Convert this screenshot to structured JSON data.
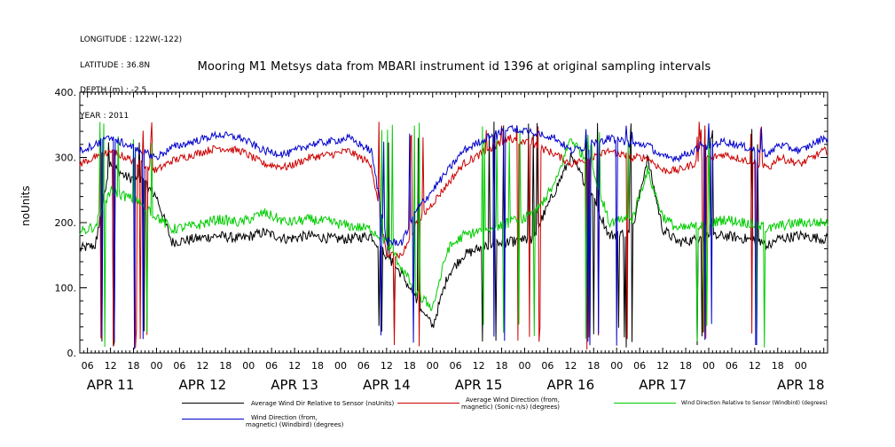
{
  "meta": {
    "longitude": "LONGITUDE : 122W(-122)",
    "latitude": "LATITUDE : 36.8N",
    "depth": "DEPTH (m) : -2.5",
    "year": "YEAR : 2011"
  },
  "chart_data": {
    "type": "line",
    "title": "Mooring M1 Metsys data from MBARI instrument id 1396 at original sampling intervals",
    "xlabel": "",
    "ylabel": "noUnits",
    "ylim": [
      0,
      400
    ],
    "y_ticks": [
      0,
      100,
      200,
      300,
      400
    ],
    "y_tick_labels": [
      "0.",
      "100.",
      "200.",
      "300.",
      "400."
    ],
    "x_range_hours": [
      -20,
      175
    ],
    "hour_ticks": [
      "06",
      "12",
      "18",
      "00",
      "06",
      "12",
      "18",
      "00",
      "06",
      "12",
      "18",
      "00",
      "06",
      "12",
      "18",
      "00",
      "06",
      "12",
      "18",
      "00",
      "06",
      "12",
      "18",
      "00",
      "06",
      "12",
      "18",
      "00",
      "06",
      "12",
      "18",
      "00"
    ],
    "day_labels": [
      "APR 11",
      "APR 12",
      "APR 13",
      "APR 14",
      "APR 15",
      "APR 16",
      "APR 17",
      "APR 18"
    ],
    "grid": false,
    "legend_position": "bottom",
    "series": [
      {
        "name": "Average Wind Dir Relative to Sensor (noUnits)",
        "color": "#000000",
        "baseline": [
          [
            -20,
            160
          ],
          [
            -16,
            165
          ],
          [
            -12,
            290
          ],
          [
            -8,
            270
          ],
          [
            -4,
            265
          ],
          [
            0,
            240
          ],
          [
            4,
            170
          ],
          [
            10,
            175
          ],
          [
            16,
            180
          ],
          [
            22,
            175
          ],
          [
            28,
            185
          ],
          [
            34,
            175
          ],
          [
            40,
            180
          ],
          [
            46,
            175
          ],
          [
            50,
            175
          ],
          [
            56,
            180
          ],
          [
            60,
            150
          ],
          [
            64,
            120
          ],
          [
            68,
            80
          ],
          [
            72,
            40
          ],
          [
            76,
            120
          ],
          [
            80,
            150
          ],
          [
            86,
            165
          ],
          [
            92,
            170
          ],
          [
            98,
            175
          ],
          [
            104,
            250
          ],
          [
            108,
            300
          ],
          [
            114,
            240
          ],
          [
            118,
            180
          ],
          [
            124,
            185
          ],
          [
            128,
            300
          ],
          [
            132,
            190
          ],
          [
            136,
            170
          ],
          [
            142,
            175
          ],
          [
            148,
            180
          ],
          [
            154,
            175
          ],
          [
            160,
            165
          ],
          [
            162,
            175
          ],
          [
            168,
            180
          ],
          [
            174,
            175
          ]
        ],
        "noise": 8
      },
      {
        "name": "Average Wind Direction (from, magnetic) (Sonic-n/s) (degrees)",
        "color": "#cc0000",
        "baseline": [
          [
            -20,
            290
          ],
          [
            -16,
            300
          ],
          [
            -12,
            310
          ],
          [
            -8,
            300
          ],
          [
            -4,
            290
          ],
          [
            0,
            280
          ],
          [
            4,
            295
          ],
          [
            10,
            305
          ],
          [
            16,
            315
          ],
          [
            22,
            310
          ],
          [
            28,
            290
          ],
          [
            34,
            285
          ],
          [
            40,
            300
          ],
          [
            46,
            305
          ],
          [
            50,
            310
          ],
          [
            56,
            290
          ],
          [
            60,
            150
          ],
          [
            64,
            150
          ],
          [
            68,
            200
          ],
          [
            72,
            230
          ],
          [
            76,
            260
          ],
          [
            80,
            290
          ],
          [
            86,
            310
          ],
          [
            92,
            330
          ],
          [
            98,
            320
          ],
          [
            104,
            305
          ],
          [
            108,
            290
          ],
          [
            114,
            300
          ],
          [
            118,
            310
          ],
          [
            124,
            300
          ],
          [
            128,
            300
          ],
          [
            132,
            280
          ],
          [
            136,
            280
          ],
          [
            142,
            295
          ],
          [
            148,
            305
          ],
          [
            154,
            295
          ],
          [
            160,
            285
          ],
          [
            162,
            300
          ],
          [
            168,
            290
          ],
          [
            174,
            310
          ]
        ],
        "noise": 6
      },
      {
        "name": "Wind Direction Relative to Sensor (Windbird) (degrees)",
        "color": "#00cc00",
        "baseline": [
          [
            -20,
            185
          ],
          [
            -16,
            195
          ],
          [
            -12,
            250
          ],
          [
            -8,
            240
          ],
          [
            -4,
            230
          ],
          [
            0,
            210
          ],
          [
            4,
            190
          ],
          [
            10,
            195
          ],
          [
            16,
            205
          ],
          [
            22,
            200
          ],
          [
            28,
            215
          ],
          [
            34,
            200
          ],
          [
            40,
            205
          ],
          [
            46,
            200
          ],
          [
            50,
            195
          ],
          [
            56,
            190
          ],
          [
            60,
            170
          ],
          [
            64,
            130
          ],
          [
            68,
            90
          ],
          [
            72,
            70
          ],
          [
            76,
            160
          ],
          [
            80,
            180
          ],
          [
            86,
            190
          ],
          [
            92,
            200
          ],
          [
            98,
            210
          ],
          [
            104,
            260
          ],
          [
            108,
            330
          ],
          [
            114,
            280
          ],
          [
            118,
            200
          ],
          [
            124,
            205
          ],
          [
            128,
            280
          ],
          [
            132,
            210
          ],
          [
            136,
            190
          ],
          [
            142,
            195
          ],
          [
            148,
            205
          ],
          [
            154,
            200
          ],
          [
            160,
            190
          ],
          [
            162,
            195
          ],
          [
            168,
            200
          ],
          [
            174,
            200
          ]
        ],
        "noise": 8
      },
      {
        "name": "Wind Direction (from, magnetic) (Windbird) (degrees)",
        "color": "#0000cc",
        "baseline": [
          [
            -20,
            310
          ],
          [
            -16,
            320
          ],
          [
            -12,
            330
          ],
          [
            -8,
            320
          ],
          [
            -4,
            310
          ],
          [
            0,
            300
          ],
          [
            4,
            315
          ],
          [
            10,
            325
          ],
          [
            16,
            335
          ],
          [
            22,
            330
          ],
          [
            28,
            310
          ],
          [
            34,
            305
          ],
          [
            40,
            320
          ],
          [
            46,
            325
          ],
          [
            50,
            330
          ],
          [
            56,
            310
          ],
          [
            60,
            170
          ],
          [
            64,
            170
          ],
          [
            68,
            220
          ],
          [
            72,
            250
          ],
          [
            76,
            280
          ],
          [
            80,
            310
          ],
          [
            86,
            330
          ],
          [
            92,
            345
          ],
          [
            98,
            340
          ],
          [
            104,
            330
          ],
          [
            108,
            310
          ],
          [
            114,
            320
          ],
          [
            118,
            330
          ],
          [
            124,
            320
          ],
          [
            128,
            320
          ],
          [
            132,
            300
          ],
          [
            136,
            300
          ],
          [
            142,
            315
          ],
          [
            148,
            325
          ],
          [
            154,
            315
          ],
          [
            160,
            305
          ],
          [
            162,
            320
          ],
          [
            168,
            310
          ],
          [
            174,
            330
          ]
        ],
        "noise": 6
      }
    ]
  },
  "legend": {
    "s1_line1": "Average Wind Dir Relative to Sensor (noUnits)",
    "s2_line1": "Average Wind Direction (from,",
    "s2_line2": "magnetic) (Sonic-n/s) (degrees)",
    "s3_line1": "Wind Direction Relative to Sensor (Windbird) (degrees)",
    "s4_line1": "Wind Direction (from,",
    "s4_line2": "magnetic) (Windbird) (degrees)"
  }
}
